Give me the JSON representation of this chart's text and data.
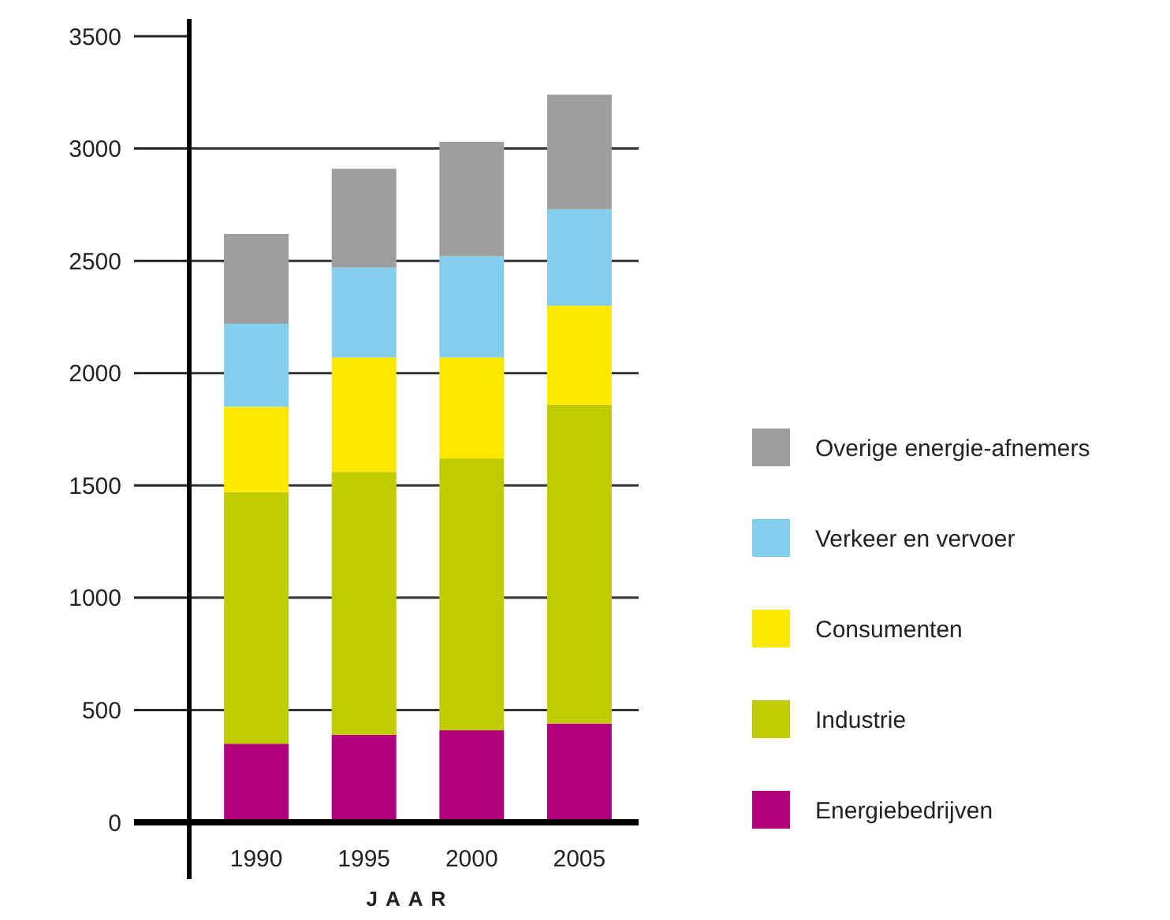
{
  "chart_data": {
    "type": "bar",
    "stacked": true,
    "xlabel": "JAAR",
    "categories": [
      "1990",
      "1995",
      "2000",
      "2005"
    ],
    "series": [
      {
        "name": "Energiebedrijven",
        "color": "#b0007a",
        "values": [
          350,
          390,
          410,
          440
        ]
      },
      {
        "name": "Industrie",
        "color": "#c0cc00",
        "values": [
          1120,
          1170,
          1210,
          1420
        ]
      },
      {
        "name": "Consumenten",
        "color": "#ffe800",
        "values": [
          380,
          510,
          450,
          440
        ]
      },
      {
        "name": "Verkeer en vervoer",
        "color": "#84cfee",
        "values": [
          370,
          400,
          450,
          430
        ]
      },
      {
        "name": "Overige energie-afnemers",
        "color": "#9d9e9f",
        "values": [
          400,
          440,
          510,
          510
        ]
      }
    ],
    "ylim": [
      0,
      3500
    ],
    "yticks": [
      0,
      500,
      1000,
      1500,
      2000,
      2500,
      3000,
      3500
    ],
    "grid": "y",
    "legend": "right"
  }
}
